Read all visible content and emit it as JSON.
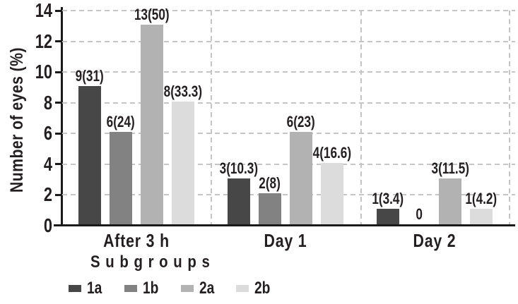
{
  "chart_data": {
    "type": "bar",
    "title": "",
    "ylabel": "Number of eyes (%)",
    "xlabel": "",
    "categories": [
      "After 3 h",
      "Day 1",
      "Day 2"
    ],
    "series": [
      {
        "name": "1a",
        "color": "#474747",
        "values": [
          9,
          3,
          1
        ],
        "labels": [
          "9(31)",
          "3(10.3)",
          "1(3.4)"
        ]
      },
      {
        "name": "1b",
        "color": "#828282",
        "values": [
          6,
          2,
          0
        ],
        "labels": [
          "6(24)",
          "2(8)",
          "0"
        ]
      },
      {
        "name": "2a",
        "color": "#b2b2b2",
        "values": [
          13,
          6,
          3
        ],
        "labels": [
          "13(50)",
          "6(23)",
          "3(11.5)"
        ]
      },
      {
        "name": "2b",
        "color": "#dcdcdc",
        "values": [
          8,
          4,
          1
        ],
        "labels": [
          "8(33.3)",
          "4(16.6)",
          "1(4.2)"
        ]
      }
    ],
    "value_label_format": "count(percent)",
    "ylim": [
      0,
      14
    ],
    "yticks": [
      0,
      2,
      4,
      6,
      8,
      10,
      12,
      14
    ],
    "grid": {
      "horizontal": "dashed",
      "vertical_group_separators": "dashed"
    },
    "legend_title": "Subgroups",
    "legend_position": "bottom-left",
    "colors": {
      "text": "#231f20",
      "axis": "#1a1a1a",
      "gridline": "#c5c5c5",
      "background": "#ffffff"
    }
  }
}
